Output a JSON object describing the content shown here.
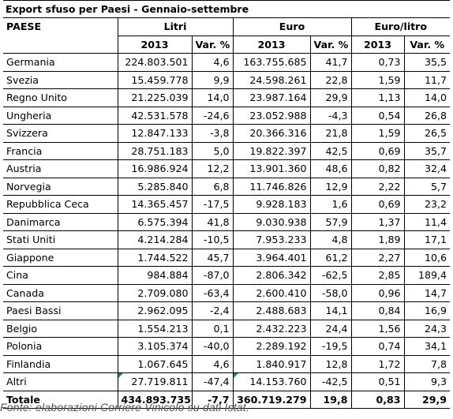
{
  "title": "Export sfuso per Paesi - Gennaio-settembre",
  "header": {
    "col_country": "PAESE",
    "group_litri": "Litri",
    "group_euro": "Euro",
    "group_euro_litro": "Euro/litro",
    "year": "2013",
    "var": "Var. %"
  },
  "rows": [
    {
      "country": "Germania",
      "litri": "224.803.501",
      "litri_var": "4,6",
      "euro": "163.755.685",
      "euro_var": "41,7",
      "el": "0,73",
      "el_var": "35,5"
    },
    {
      "country": "Svezia",
      "litri": "15.459.778",
      "litri_var": "9,9",
      "euro": "24.598.261",
      "euro_var": "22,8",
      "el": "1,59",
      "el_var": "11,7"
    },
    {
      "country": "Regno Unito",
      "litri": "21.225.039",
      "litri_var": "14,0",
      "euro": "23.987.164",
      "euro_var": "29,9",
      "el": "1,13",
      "el_var": "14,0"
    },
    {
      "country": "Ungheria",
      "litri": "42.531.578",
      "litri_var": "-24,6",
      "euro": "23.052.988",
      "euro_var": "-4,3",
      "el": "0,54",
      "el_var": "26,8"
    },
    {
      "country": "Svizzera",
      "litri": "12.847.133",
      "litri_var": "-3,8",
      "euro": "20.366.316",
      "euro_var": "21,8",
      "el": "1,59",
      "el_var": "26,5"
    },
    {
      "country": "Francia",
      "litri": "28.751.183",
      "litri_var": "5,0",
      "euro": "19.822.397",
      "euro_var": "42,5",
      "el": "0,69",
      "el_var": "35,7"
    },
    {
      "country": "Austria",
      "litri": "16.986.924",
      "litri_var": "12,2",
      "euro": "13.901.360",
      "euro_var": "48,6",
      "el": "0,82",
      "el_var": "32,4"
    },
    {
      "country": "Norvegia",
      "litri": "5.285.840",
      "litri_var": "6,8",
      "euro": "11.746.826",
      "euro_var": "12,9",
      "el": "2,22",
      "el_var": "5,7"
    },
    {
      "country": "Repubblica Ceca",
      "litri": "14.365.457",
      "litri_var": "-17,5",
      "euro": "9.928.183",
      "euro_var": "1,6",
      "el": "0,69",
      "el_var": "23,2"
    },
    {
      "country": "Danimarca",
      "litri": "6.575.394",
      "litri_var": "41,8",
      "euro": "9.030.938",
      "euro_var": "57,9",
      "el": "1,37",
      "el_var": "11,4"
    },
    {
      "country": "Stati Uniti",
      "litri": "4.214.284",
      "litri_var": "-10,5",
      "euro": "7.953.233",
      "euro_var": "4,8",
      "el": "1,89",
      "el_var": "17,1"
    },
    {
      "country": "Giappone",
      "litri": "1.744.522",
      "litri_var": "45,7",
      "euro": "3.964.401",
      "euro_var": "61,2",
      "el": "2,27",
      "el_var": "10,6"
    },
    {
      "country": "Cina",
      "litri": "984.884",
      "litri_var": "-87,0",
      "euro": "2.806.342",
      "euro_var": "-62,5",
      "el": "2,85",
      "el_var": "189,4"
    },
    {
      "country": "Canada",
      "litri": "2.709.080",
      "litri_var": "-63,4",
      "euro": "2.600.410",
      "euro_var": "-58,0",
      "el": "0,96",
      "el_var": "14,7"
    },
    {
      "country": "Paesi Bassi",
      "litri": "2.962.095",
      "litri_var": "-2,4",
      "euro": "2.488.683",
      "euro_var": "14,1",
      "el": "0,84",
      "el_var": "16,9"
    },
    {
      "country": "Belgio",
      "litri": "1.554.213",
      "litri_var": "0,1",
      "euro": "2.432.223",
      "euro_var": "24,4",
      "el": "1,56",
      "el_var": "24,3"
    },
    {
      "country": "Polonia",
      "litri": "3.105.374",
      "litri_var": "-40,0",
      "euro": "2.289.192",
      "euro_var": "-19,5",
      "el": "0,74",
      "el_var": "34,1"
    },
    {
      "country": "Finlandia",
      "litri": "1.067.645",
      "litri_var": "4,6",
      "euro": "1.840.917",
      "euro_var": "12,8",
      "el": "1,72",
      "el_var": "7,8"
    },
    {
      "country": "Altri",
      "litri": "27.719.811",
      "litri_var": "-47,4",
      "euro": "14.153.760",
      "euro_var": "-42,5",
      "el": "0,51",
      "el_var": "9,3",
      "marker": true
    }
  ],
  "total": {
    "country": "Totale",
    "litri": "434.893.735",
    "litri_var": "-7,7",
    "euro": "360.719.279",
    "euro_var": "19,8",
    "el": "0,83",
    "el_var": "29,9"
  },
  "footnote": "Fonte: elaborazioni Corriere Vinicolo su dati Istat."
}
